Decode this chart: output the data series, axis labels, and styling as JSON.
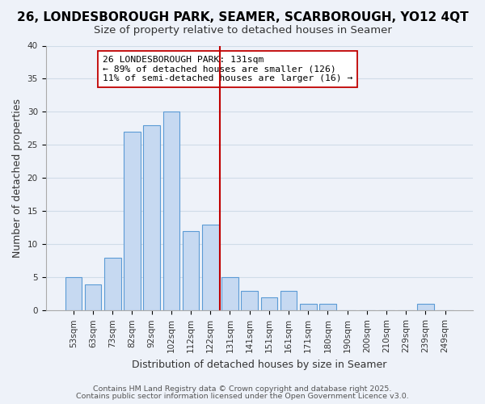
{
  "title": "26, LONDESBOROUGH PARK, SEAMER, SCARBOROUGH, YO12 4QT",
  "subtitle": "Size of property relative to detached houses in Seamer",
  "xlabel": "Distribution of detached houses by size in Seamer",
  "ylabel": "Number of detached properties",
  "bar_labels": [
    "53sqm",
    "63sqm",
    "73sqm",
    "82sqm",
    "92sqm",
    "102sqm",
    "112sqm",
    "122sqm",
    "131sqm",
    "141sqm",
    "151sqm",
    "161sqm",
    "171sqm",
    "180sqm",
    "190sqm",
    "200sqm",
    "210sqm",
    "229sqm",
    "239sqm",
    "249sqm"
  ],
  "bar_values": [
    5,
    4,
    8,
    27,
    28,
    30,
    12,
    13,
    5,
    3,
    2,
    3,
    1,
    1,
    0,
    0,
    0,
    0,
    1,
    0
  ],
  "bar_color": "#c6d9f1",
  "bar_edge_color": "#5b9bd5",
  "vline_x_index": 7.5,
  "vline_color": "#c00000",
  "annotation_text": "26 LONDESBOROUGH PARK: 131sqm\n← 89% of detached houses are smaller (126)\n11% of semi-detached houses are larger (16) →",
  "annotation_box_color": "#ffffff",
  "annotation_box_edge": "#c00000",
  "ylim": [
    0,
    40
  ],
  "yticks": [
    0,
    5,
    10,
    15,
    20,
    25,
    30,
    35,
    40
  ],
  "grid_color": "#d0dce8",
  "background_color": "#eef2f9",
  "footer_line1": "Contains HM Land Registry data © Crown copyright and database right 2025.",
  "footer_line2": "Contains public sector information licensed under the Open Government Licence v3.0.",
  "title_fontsize": 11,
  "subtitle_fontsize": 9.5,
  "axis_label_fontsize": 9,
  "tick_fontsize": 7.5,
  "annotation_fontsize": 8.2,
  "footer_fontsize": 6.8
}
